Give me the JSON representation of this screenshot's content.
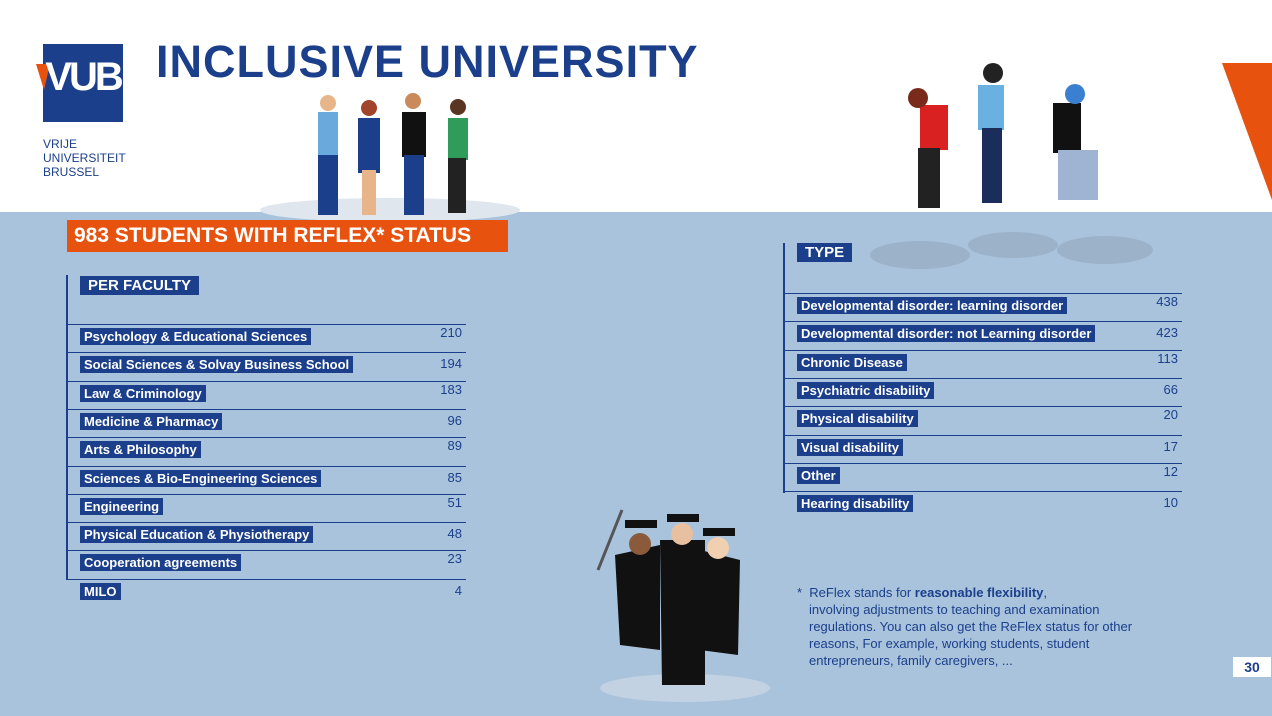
{
  "logo": {
    "mark": "VUB",
    "lines": [
      "VRIJE",
      "UNIVERSITEIT",
      "BRUSSEL"
    ]
  },
  "title": "INCLUSIVE UNIVERSITY",
  "banner": "983 STUDENTS WITH REFLEX* STATUS",
  "faculty": {
    "heading": "PER FACULTY",
    "rows": [
      [
        "Psychology & Educational Sciences",
        210
      ],
      [
        "Social Sciences & Solvay Business School",
        194
      ],
      [
        "Law & Criminology",
        183
      ],
      [
        "Medicine & Pharmacy",
        96
      ],
      [
        "Arts & Philosophy",
        89
      ],
      [
        "Sciences & Bio-Engineering Sciences",
        85
      ],
      [
        "Engineering",
        51
      ],
      [
        "Physical Education & Physiotherapy",
        48
      ],
      [
        "Cooperation agreements",
        23
      ],
      [
        "MILO",
        4
      ]
    ]
  },
  "type": {
    "heading": "TYPE",
    "rows": [
      [
        "Developmental disorder: learning disorder",
        438
      ],
      [
        "Developmental disorder: not Learning disorder",
        423
      ],
      [
        "Chronic Disease",
        113
      ],
      [
        "Psychiatric disability",
        66
      ],
      [
        "Physical disability",
        20
      ],
      [
        "Visual disability",
        17
      ],
      [
        "Other",
        12
      ],
      [
        "Hearing disability",
        10
      ]
    ]
  },
  "footnote": {
    "star": "*",
    "before": "ReFlex stands for ",
    "bold": "reasonable flexibility",
    "after": ",",
    "lines": [
      "involving adjustments to teaching and examination",
      "regulations. You can also get the ReFlex status for other",
      "reasons, For example, working students, student",
      "entrepreneurs, family caregivers, ..."
    ]
  },
  "page_number": "30"
}
